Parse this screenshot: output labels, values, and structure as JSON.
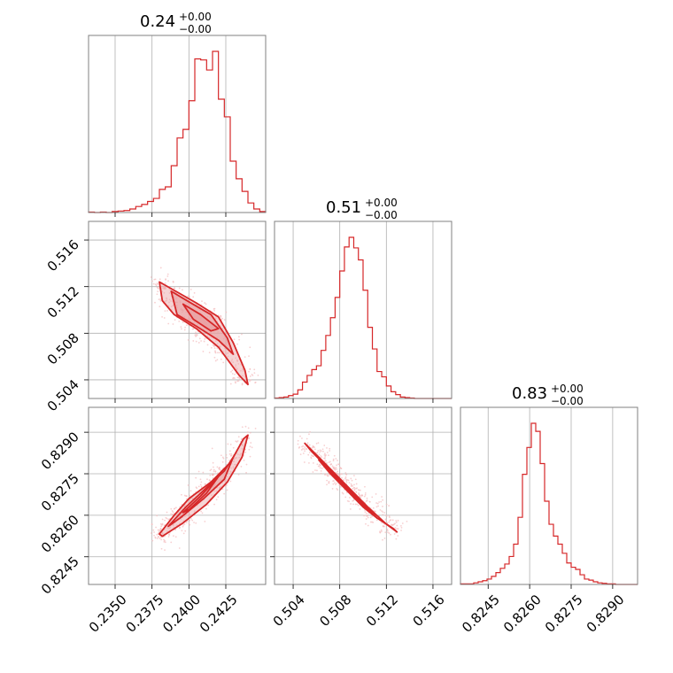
{
  "colors": {
    "series": "#d62728",
    "fill": "#e8a0a1",
    "grid": "#b0b0b0",
    "frame": "#808080",
    "scatter": "#f4bcbd"
  },
  "titles": [
    {
      "main": "0.24",
      "sup": "+0.00",
      "sub": "−0.00"
    },
    {
      "main": "0.51",
      "sup": "+0.00",
      "sub": "−0.00"
    },
    {
      "main": "0.83",
      "sup": "+0.00",
      "sub": "−0.00"
    }
  ],
  "axes": {
    "p0": {
      "range": [
        0.2332,
        0.2452
      ],
      "ticks": [
        0.235,
        0.2375,
        0.24,
        0.2425
      ],
      "labels": [
        "0.2350",
        "0.2375",
        "0.2400",
        "0.2425"
      ]
    },
    "p1": {
      "range": [
        0.5024,
        0.5176
      ],
      "ticks": [
        0.504,
        0.508,
        0.512,
        0.516
      ],
      "labels": [
        "0.504",
        "0.508",
        "0.512",
        "0.516"
      ]
    },
    "p2": {
      "range": [
        0.8235,
        0.8299
      ],
      "ticks": [
        0.8245,
        0.826,
        0.8275,
        0.829
      ],
      "labels": [
        "0.8245",
        "0.8260",
        "0.8275",
        "0.8290"
      ]
    }
  },
  "chart_data": {
    "type": "corner",
    "series_color": "#d62728",
    "histograms": [
      {
        "param": "p0",
        "bin_edges": [
          0.2332,
          0.2336,
          0.234,
          0.2344,
          0.2348,
          0.2352,
          0.2356,
          0.236,
          0.2364,
          0.2368,
          0.2372,
          0.2376,
          0.238,
          0.2384,
          0.2388,
          0.2392,
          0.2396,
          0.24,
          0.2404,
          0.2408,
          0.2412,
          0.2416,
          0.242,
          0.2424,
          0.2428,
          0.2432,
          0.2436,
          0.244,
          0.2444,
          0.2448,
          0.2452
        ],
        "counts": [
          1,
          0,
          1,
          0,
          2,
          3,
          4,
          7,
          12,
          16,
          22,
          28,
          46,
          51,
          93,
          148,
          165,
          222,
          305,
          303,
          283,
          320,
          225,
          190,
          102,
          67,
          42,
          19,
          7,
          2
        ]
      },
      {
        "param": "p1",
        "bin_edges": [
          0.5024,
          0.5028,
          0.5032,
          0.5036,
          0.504,
          0.5044,
          0.5048,
          0.5052,
          0.5056,
          0.506,
          0.5064,
          0.5068,
          0.5072,
          0.5076,
          0.508,
          0.5084,
          0.5088,
          0.5092,
          0.5096,
          0.51,
          0.5104,
          0.5108,
          0.5112,
          0.5116,
          0.512,
          0.5124,
          0.5128,
          0.5132,
          0.5136,
          0.514,
          0.5144,
          0.5148,
          0.5152,
          0.5156,
          0.516,
          0.5164,
          0.5168,
          0.5172,
          0.5176
        ],
        "counts": [
          1,
          2,
          3,
          6,
          9,
          18,
          34,
          48,
          60,
          68,
          100,
          131,
          168,
          210,
          265,
          315,
          335,
          313,
          288,
          225,
          148,
          103,
          56,
          45,
          26,
          14,
          8,
          3,
          2,
          1,
          0,
          0,
          0,
          0,
          0,
          0,
          0,
          0
        ]
      },
      {
        "param": "p2",
        "bin_edges": [
          0.8235,
          0.82366,
          0.82382,
          0.82398,
          0.82414,
          0.8243,
          0.82446,
          0.82462,
          0.82478,
          0.82494,
          0.8251,
          0.82526,
          0.82542,
          0.82558,
          0.82574,
          0.8259,
          0.82606,
          0.82622,
          0.82638,
          0.82654,
          0.8267,
          0.82686,
          0.82702,
          0.82718,
          0.82734,
          0.8275,
          0.82766,
          0.82782,
          0.82798,
          0.82814,
          0.8283,
          0.82846,
          0.82862,
          0.82878,
          0.82894,
          0.8291,
          0.82926,
          0.82942,
          0.82958,
          0.82974,
          0.8299
        ],
        "counts": [
          1,
          1,
          1,
          3,
          5,
          7,
          10,
          15,
          22,
          30,
          38,
          52,
          75,
          125,
          205,
          255,
          300,
          285,
          225,
          155,
          112,
          90,
          75,
          58,
          40,
          32,
          28,
          18,
          10,
          8,
          5,
          3,
          2,
          1,
          1,
          0,
          0,
          0,
          0,
          0
        ]
      }
    ],
    "pairs": [
      {
        "x": "p0",
        "y": "p1",
        "contours": [
          [
            [
              0.238,
              0.5124
            ],
            [
              0.2394,
              0.5114
            ],
            [
              0.2405,
              0.5106
            ],
            [
              0.242,
              0.5094
            ],
            [
              0.243,
              0.5072
            ],
            [
              0.2438,
              0.5048
            ],
            [
              0.244,
              0.5036
            ],
            [
              0.2434,
              0.5044
            ],
            [
              0.242,
              0.5068
            ],
            [
              0.2405,
              0.5084
            ],
            [
              0.239,
              0.5096
            ],
            [
              0.2382,
              0.5108
            ],
            [
              0.238,
              0.5124
            ]
          ],
          [
            [
              0.2388,
              0.5116
            ],
            [
              0.24,
              0.5107
            ],
            [
              0.2415,
              0.5096
            ],
            [
              0.2426,
              0.5076
            ],
            [
              0.243,
              0.5062
            ],
            [
              0.242,
              0.5074
            ],
            [
              0.2405,
              0.5086
            ],
            [
              0.2392,
              0.5096
            ],
            [
              0.2388,
              0.5116
            ]
          ],
          [
            [
              0.2396,
              0.5105
            ],
            [
              0.2408,
              0.5096
            ],
            [
              0.242,
              0.5084
            ],
            [
              0.2415,
              0.5082
            ],
            [
              0.2403,
              0.5092
            ],
            [
              0.2396,
              0.5105
            ]
          ]
        ]
      },
      {
        "x": "p0",
        "y": "p2",
        "contours": [
          [
            [
              0.238,
              0.82532
            ],
            [
              0.239,
              0.826
            ],
            [
              0.24,
              0.8266
            ],
            [
              0.2415,
              0.8272
            ],
            [
              0.2428,
              0.8279
            ],
            [
              0.2437,
              0.82876
            ],
            [
              0.244,
              0.8289
            ],
            [
              0.2436,
              0.8281
            ],
            [
              0.2426,
              0.8272
            ],
            [
              0.2412,
              0.8264
            ],
            [
              0.2396,
              0.82572
            ],
            [
              0.2382,
              0.82524
            ],
            [
              0.238,
              0.82532
            ]
          ],
          [
            [
              0.2386,
              0.8256
            ],
            [
              0.2398,
              0.8263
            ],
            [
              0.2412,
              0.827
            ],
            [
              0.2424,
              0.8276
            ],
            [
              0.243,
              0.8281
            ],
            [
              0.2424,
              0.8273
            ],
            [
              0.241,
              0.8266
            ],
            [
              0.2394,
              0.8259
            ],
            [
              0.2386,
              0.8256
            ]
          ],
          [
            [
              0.2396,
              0.8261
            ],
            [
              0.2408,
              0.8267
            ],
            [
              0.242,
              0.8274
            ],
            [
              0.2412,
              0.8268
            ],
            [
              0.24,
              0.8262
            ],
            [
              0.2396,
              0.8261
            ]
          ]
        ]
      },
      {
        "x": "p1",
        "y": "p2",
        "contours": [
          [
            [
              0.505,
              0.8286
            ],
            [
              0.5062,
              0.8281
            ],
            [
              0.5076,
              0.8275
            ],
            [
              0.509,
              0.8269
            ],
            [
              0.5104,
              0.8263
            ],
            [
              0.512,
              0.82568
            ],
            [
              0.5129,
              0.8254
            ],
            [
              0.5126,
              0.82552
            ],
            [
              0.5112,
              0.8259
            ],
            [
              0.5098,
              0.8265
            ],
            [
              0.5084,
              0.8271
            ],
            [
              0.507,
              0.8277
            ],
            [
              0.5056,
              0.8283
            ],
            [
              0.505,
              0.8286
            ]
          ],
          [
            [
              0.5062,
              0.828
            ],
            [
              0.5076,
              0.8274
            ],
            [
              0.509,
              0.8268
            ],
            [
              0.5104,
              0.8262
            ],
            [
              0.5112,
              0.8259
            ],
            [
              0.51,
              0.8263
            ],
            [
              0.5086,
              0.8269
            ],
            [
              0.5072,
              0.8275
            ],
            [
              0.5062,
              0.828
            ]
          ]
        ]
      }
    ]
  }
}
